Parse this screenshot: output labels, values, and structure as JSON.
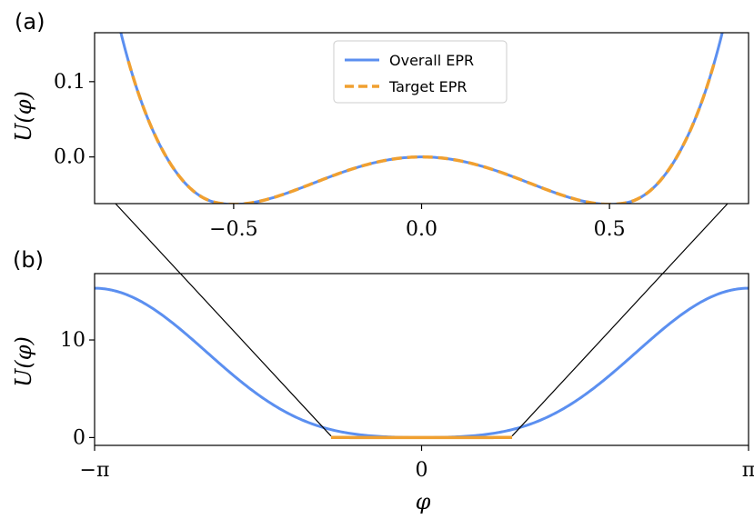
{
  "colors": {
    "overall": "#5b8ff0",
    "target": "#f0a030",
    "frame": "#000000"
  },
  "panel_labels": [
    "(a)",
    "(b)"
  ],
  "legend": {
    "overall": "Overall EPR",
    "target": "Target EPR",
    "placement": "top-center"
  },
  "y_axis_label": "U(φ)",
  "x_axis_label": "φ",
  "chart_data": [
    {
      "type": "line",
      "panel": "(a)",
      "xlim": [
        -0.87,
        0.87
      ],
      "ylim": [
        -0.062,
        0.165
      ],
      "x_ticks": [
        {
          "value": -0.5,
          "label": "−0.5"
        },
        {
          "value": 0.0,
          "label": "0.0"
        },
        {
          "value": 0.5,
          "label": "0.5"
        }
      ],
      "y_ticks": [
        {
          "value": 0.0,
          "label": "0.0"
        },
        {
          "value": 0.1,
          "label": "0.1"
        }
      ],
      "xlabel": "",
      "ylabel": "U(φ)",
      "series": [
        {
          "name": "Overall EPR",
          "style": "solid",
          "x_range": [
            -0.87,
            0.87
          ],
          "x": [
            -0.87,
            -0.8,
            -0.7,
            -0.6,
            -0.5,
            -0.4,
            -0.3,
            -0.2,
            -0.1,
            0.0,
            0.1,
            0.2,
            0.3,
            0.4,
            0.5,
            0.6,
            0.7,
            0.8,
            0.87
          ],
          "y": [
            0.165,
            0.076,
            0.015,
            -0.044,
            -0.063,
            -0.05,
            -0.033,
            -0.017,
            -0.005,
            0.0,
            -0.005,
            -0.017,
            -0.033,
            -0.05,
            -0.063,
            -0.044,
            0.015,
            0.076,
            0.165
          ]
        },
        {
          "name": "Target EPR",
          "style": "dashed",
          "x_range": [
            -0.78,
            0.78
          ],
          "x": [
            -0.78,
            -0.7,
            -0.6,
            -0.5,
            -0.4,
            -0.3,
            -0.2,
            -0.1,
            0.0,
            0.1,
            0.2,
            0.3,
            0.4,
            0.5,
            0.6,
            0.7,
            0.78
          ],
          "y": [
            0.065,
            0.015,
            -0.044,
            -0.063,
            -0.05,
            -0.033,
            -0.017,
            -0.005,
            0.0,
            -0.005,
            -0.017,
            -0.033,
            -0.05,
            -0.063,
            -0.044,
            0.015,
            0.065
          ]
        }
      ]
    },
    {
      "type": "line",
      "panel": "(b)",
      "xlim": [
        -3.14159,
        3.14159
      ],
      "ylim": [
        -0.8,
        16.8
      ],
      "x_ticks": [
        {
          "value": -3.14159,
          "label": "−π"
        },
        {
          "value": 0,
          "label": "0"
        },
        {
          "value": 3.14159,
          "label": "π"
        }
      ],
      "y_ticks": [
        {
          "value": 0,
          "label": "0"
        },
        {
          "value": 10,
          "label": "10"
        }
      ],
      "xlabel": "φ",
      "ylabel": "U(φ)",
      "series": [
        {
          "name": "Overall EPR",
          "style": "solid",
          "x": [
            -3.14159,
            -2.75,
            -2.36,
            -1.96,
            -1.57,
            -1.18,
            -0.87,
            0.0,
            0.87,
            1.18,
            1.57,
            1.96,
            2.36,
            2.75,
            3.14159
          ],
          "y": [
            15.3,
            14.4,
            11.7,
            7.8,
            4.2,
            1.4,
            0.16,
            0.0,
            0.16,
            1.4,
            4.2,
            7.8,
            11.7,
            14.4,
            15.3
          ]
        },
        {
          "name": "Target EPR",
          "style": "solid",
          "x_range": [
            -0.87,
            0.87
          ],
          "x": [
            -0.87,
            0.0,
            0.87
          ],
          "y": [
            0.16,
            0.0,
            0.16
          ]
        }
      ]
    }
  ]
}
